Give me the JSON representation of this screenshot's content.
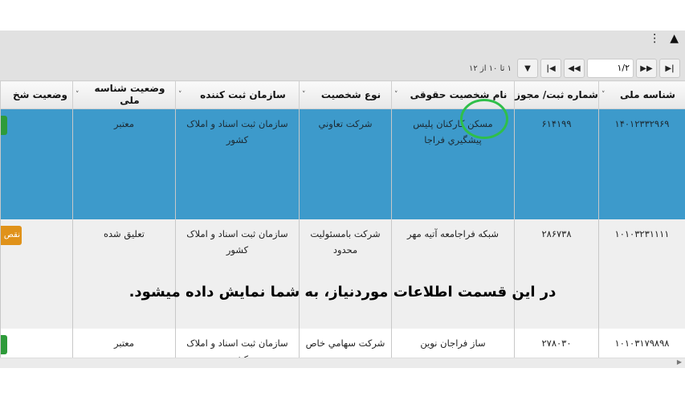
{
  "toolbar": {
    "collapse_icon": "chevron-up-icon",
    "menu_icon": "kebab-menu-icon"
  },
  "pager": {
    "page_value": "۱",
    "page_total": "/۲",
    "info": "۱ تا ۱۰ از ۱۲"
  },
  "columns": [
    "شناسه ملی",
    "شماره ثبت/ مجوز",
    "نام شخصیت حقوقی",
    "نوع شخصیت",
    "سازمان ثبت کننده",
    "وضعیت شناسه ملی",
    "وضعیت شخ"
  ],
  "rows": [
    {
      "national_id": "۱۴۰۱۲۳۳۲۹۶۹",
      "reg_no": "۶۱۴۱۹۹",
      "name": "مسکن کارکنان پلیس پیشگيري فراجا",
      "type": "شرکت تعاوني",
      "org": "سازمان ثبت اسناد و املاک کشور",
      "id_status": "معتبر",
      "status_color": "#2e9b3a",
      "status_label": ""
    },
    {
      "national_id": "۱۰۱۰۳۲۳۱۱۱۱",
      "reg_no": "۲۸۶۷۳۸",
      "name": "شبکه فراجامعه آتیه مهر",
      "type": "شرکت بامسئولیت محدود",
      "org": "سازمان ثبت اسناد و املاک کشور",
      "id_status": "تعلیق شده",
      "status_color": "#e0921a",
      "status_label": "نقص"
    },
    {
      "national_id": "۱۰۱۰۳۱۷۹۸۹۸",
      "reg_no": "۲۷۸۰۳۰",
      "name": "ساز فراجان نوین",
      "type": "شرکت سهامي خاص",
      "org": "سازمان ثبت اسناد و املاک کشور",
      "id_status": "معتبر",
      "status_color": "#2e9b3a",
      "status_label": ""
    }
  ],
  "caption": "در این قسمت اطلاعات موردنیاز، به شما نمایش داده میشود."
}
